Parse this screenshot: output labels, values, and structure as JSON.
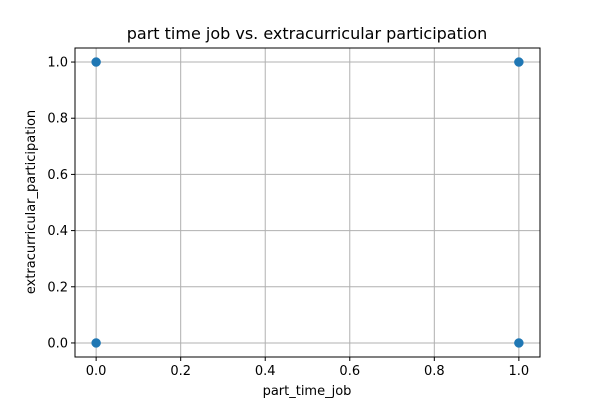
{
  "chart_data": {
    "type": "scatter",
    "title": "part time job vs. extracurricular participation",
    "xlabel": "part_time_job",
    "ylabel": "extracurricular_participation",
    "xlim": [
      -0.05,
      1.05
    ],
    "ylim": [
      -0.05,
      1.05
    ],
    "xticks": [
      0.0,
      0.2,
      0.4,
      0.6,
      0.8,
      1.0
    ],
    "xtick_labels": [
      "0.0",
      "0.2",
      "0.4",
      "0.6",
      "0.8",
      "1.0"
    ],
    "yticks": [
      0.0,
      0.2,
      0.4,
      0.6,
      0.8,
      1.0
    ],
    "ytick_labels": [
      "0.0",
      "0.2",
      "0.4",
      "0.6",
      "0.8",
      "1.0"
    ],
    "grid": true,
    "points": [
      {
        "x": 0,
        "y": 0
      },
      {
        "x": 0,
        "y": 1
      },
      {
        "x": 1,
        "y": 0
      },
      {
        "x": 1,
        "y": 1
      }
    ],
    "marker_color": "#1f77b4",
    "grid_color": "#b0b0b0"
  }
}
